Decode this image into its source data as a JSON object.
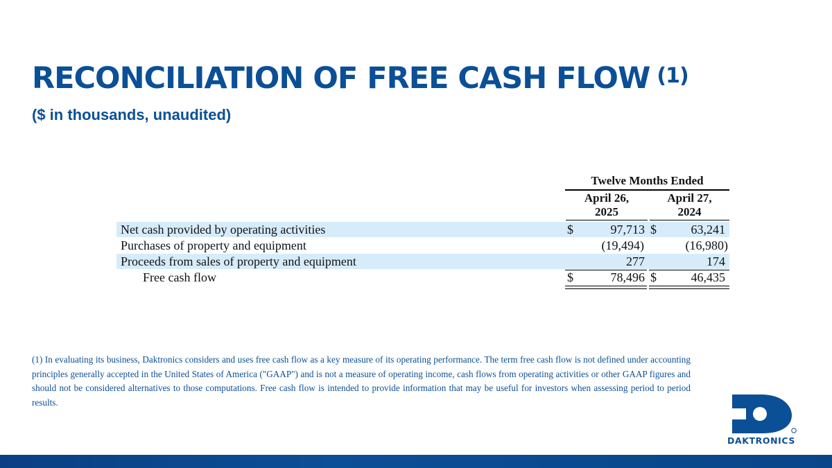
{
  "slide": {
    "title": "RECONCILIATION OF FREE CASH FLOW",
    "title_superscript": "(1)",
    "subtitle": "($ in thousands, unaudited)"
  },
  "table": {
    "group_header": "Twelve Months Ended",
    "columns": [
      {
        "line1": "April 26,",
        "line2": "2025"
      },
      {
        "line1": "April 27,",
        "line2": "2024"
      }
    ],
    "rows": [
      {
        "label": "Net cash provided by operating activities",
        "dollar1": "$",
        "value1": "97,713",
        "dollar2": "$",
        "value2": "63,241"
      },
      {
        "label": "Purchases of property and equipment",
        "dollar1": "",
        "value1": "(19,494)",
        "dollar2": "",
        "value2": "(16,980)"
      },
      {
        "label": "Proceeds from sales of property and equipment",
        "dollar1": "",
        "value1": "277",
        "dollar2": "",
        "value2": "174"
      },
      {
        "label": "Free cash flow",
        "dollar1": "$",
        "value1": "78,496",
        "dollar2": "$",
        "value2": "46,435"
      }
    ]
  },
  "footnote": "(1) In evaluating its business, Daktronics considers and uses free cash flow as a key measure of its operating performance. The term free cash flow is not defined under accounting principles generally accepted in the United States of America (\"GAAP\") and is not a measure of operating income, cash flows from operating activities or other GAAP figures and should not be considered alternatives to those computations. Free cash flow is intended to provide information that may be useful for investors when assessing period to period results.",
  "branding": {
    "logo_text": "DAKTRONICS",
    "logo_icon": "daktronics-d-logo-icon",
    "accent_color": "#0b4f96",
    "row_shade_color": "#d7ecfb"
  }
}
